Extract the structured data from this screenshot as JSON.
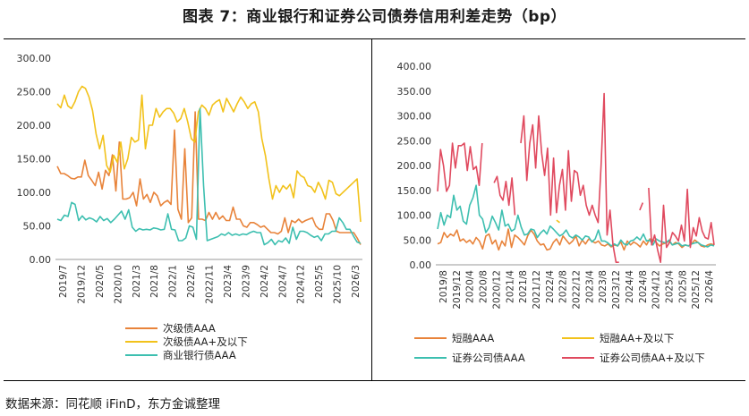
{
  "title": "图表 7：商业银行和证券公司债券信用利差走势（bp）",
  "source": "数据来源：同花顺 iFinD，东方金诚整理",
  "colors": {
    "orange": "#E8833A",
    "yellow": "#F2C21B",
    "teal": "#3DBFB0",
    "red": "#E04A5F"
  },
  "chart_data": [
    {
      "type": "line",
      "ylim": [
        0,
        300
      ],
      "yticks": [
        "300.00",
        "250.00",
        "200.00",
        "150.00",
        "100.00",
        "50.00",
        "0.00"
      ],
      "xticks": [
        "2019/7",
        "2019/12",
        "2020/5",
        "2020/10",
        "2021/3",
        "2021/8",
        "2022/1",
        "2022/6",
        "2022/11",
        "2023/4",
        "2023/9",
        "2024/2",
        "2024/7",
        "2024/12",
        "2025/5",
        "2025/10",
        "2026/3"
      ],
      "legend": [
        "次级债AAA",
        "次级债AA+及以下",
        "商业银行债AAA"
      ],
      "series": [
        {
          "name": "次级债AAA",
          "color": "orange",
          "values": [
            139,
            128,
            128,
            125,
            121,
            120,
            123,
            123,
            148,
            125,
            118,
            110,
            130,
            105,
            133,
            125,
            156,
            102,
            175,
            90,
            90,
            92,
            100,
            80,
            120,
            90,
            97,
            85,
            100,
            95,
            80,
            85,
            88,
            82,
            193,
            75,
            60,
            165,
            55,
            62,
            220,
            60,
            60,
            58,
            70,
            60,
            70,
            60,
            65,
            58,
            58,
            78,
            60,
            60,
            50,
            48,
            55,
            55,
            52,
            48,
            50,
            45,
            40,
            40,
            38,
            42,
            62,
            40,
            58,
            55,
            60,
            55,
            58,
            60,
            62,
            50,
            45,
            45,
            68,
            68,
            58,
            42,
            40,
            40,
            40,
            40,
            40,
            32,
            22
          ]
        },
        {
          "name": "次级债AA+及以下",
          "color": "yellow",
          "values": [
            232,
            226,
            245,
            229,
            225,
            235,
            250,
            258,
            255,
            242,
            222,
            187,
            165,
            185,
            140,
            130,
            155,
            145,
            175,
            135,
            150,
            182,
            175,
            178,
            245,
            165,
            200,
            200,
            225,
            212,
            220,
            225,
            225,
            218,
            205,
            210,
            225,
            205,
            180,
            175,
            220,
            230,
            225,
            215,
            230,
            235,
            238,
            220,
            240,
            230,
            220,
            232,
            242,
            235,
            225,
            232,
            235,
            220,
            180,
            155,
            120,
            90,
            110,
            100,
            110,
            105,
            112,
            92,
            132,
            125,
            122,
            110,
            108,
            100,
            115,
            105,
            90,
            118,
            115,
            98,
            95,
            100,
            105,
            110,
            115,
            120,
            56
          ]
        },
        {
          "name": "商业银行债AAA",
          "color": "teal",
          "values": [
            60,
            58,
            66,
            64,
            85,
            82,
            58,
            65,
            59,
            62,
            60,
            56,
            64,
            58,
            61,
            55,
            60,
            66,
            72,
            60,
            74,
            48,
            42,
            46,
            44,
            45,
            44,
            47,
            46,
            44,
            45,
            68,
            45,
            44,
            28,
            28,
            32,
            50,
            48,
            30,
            225,
            110,
            28,
            30,
            32,
            34,
            38,
            36,
            40,
            36,
            38,
            36,
            38,
            37,
            40,
            42,
            40,
            40,
            22,
            25,
            30,
            22,
            28,
            26,
            32,
            24,
            48,
            30,
            42,
            42,
            40,
            36,
            33,
            35,
            28,
            38,
            38,
            42,
            42,
            62,
            55,
            45,
            45,
            35,
            26,
            24
          ]
        }
      ]
    },
    {
      "type": "line",
      "ylim": [
        0,
        400
      ],
      "yticks": [
        "400.00",
        "350.00",
        "300.00",
        "250.00",
        "200.00",
        "150.00",
        "100.00",
        "50.00",
        "0.00"
      ],
      "xticks": [
        "2019/8",
        "2019/12",
        "2020/4",
        "2020/8",
        "2020/12",
        "2021/4",
        "2021/8",
        "2021/12",
        "2022/4",
        "2022/8",
        "2022/12",
        "2023/4",
        "2023/8",
        "2023/12",
        "2024/4",
        "2024/8",
        "2024/12",
        "2025/4",
        "2025/8",
        "2025/12",
        "2026/4"
      ],
      "legend": [
        "短融AAA",
        "短融AA+及以下",
        "证券公司债AAA",
        "证券公司债AA+及以下"
      ],
      "series": [
        {
          "name": "短融AAA",
          "color": "orange",
          "values": [
            42,
            45,
            65,
            55,
            62,
            58,
            70,
            48,
            52,
            45,
            50,
            42,
            55,
            48,
            32,
            58,
            62,
            42,
            50,
            30,
            48,
            38,
            72,
            35,
            60,
            55,
            48,
            40,
            58,
            70,
            62,
            48,
            40,
            42,
            30,
            32,
            45,
            52,
            40,
            58,
            50,
            42,
            48,
            58,
            38,
            50,
            42,
            52,
            48,
            44,
            48,
            40,
            38,
            42,
            36,
            40,
            38,
            46,
            30,
            48,
            40,
            46,
            42,
            36,
            48,
            40,
            52,
            50,
            45,
            38,
            42,
            44,
            48,
            40,
            45,
            42,
            35,
            40,
            38,
            42,
            50,
            45,
            38,
            36,
            40,
            42,
            40
          ]
        },
        {
          "name": "短融AA+及以下",
          "color": "yellow",
          "values": [
            null,
            null,
            null,
            null,
            null,
            null,
            null,
            null,
            null,
            null,
            null,
            150,
            null,
            null,
            null,
            null,
            null,
            null,
            null,
            null,
            null,
            null,
            null,
            112,
            null,
            null,
            null,
            null,
            null,
            null,
            null,
            null,
            null,
            null,
            null,
            null,
            null,
            90,
            85,
            null,
            null,
            null,
            null,
            null,
            null,
            null,
            null,
            null,
            null,
            null,
            null,
            null,
            null,
            null,
            120,
            null,
            null,
            null,
            null,
            null,
            95,
            null,
            null,
            null,
            null,
            null,
            null,
            72,
            null,
            null,
            null,
            null,
            null,
            null,
            null,
            null,
            null,
            null,
            null,
            null,
            null,
            null,
            null,
            null,
            null,
            null,
            null
          ]
        },
        {
          "name": "证券公司债AAA",
          "color": "teal",
          "values": [
            72,
            105,
            80,
            100,
            95,
            140,
            110,
            118,
            88,
            82,
            120,
            135,
            160,
            100,
            92,
            65,
            75,
            98,
            85,
            70,
            110,
            78,
            82,
            68,
            72,
            100,
            76,
            60,
            62,
            72,
            70,
            55,
            64,
            70,
            62,
            78,
            72,
            65,
            58,
            62,
            70,
            58,
            54,
            60,
            56,
            50,
            58,
            56,
            46,
            52,
            70,
            48,
            48,
            44,
            38,
            42,
            38,
            50,
            42,
            40,
            48,
            50,
            56,
            50,
            62,
            48,
            50,
            40,
            52,
            48,
            46,
            44,
            50,
            40,
            42,
            44,
            38,
            40,
            38,
            42,
            44,
            45,
            40,
            38,
            36,
            40,
            38
          ]
        },
        {
          "name": "证券公司债AA+及以下",
          "color": "red",
          "values": [
            148,
            232,
            200,
            148,
            160,
            245,
            195,
            240,
            240,
            245,
            190,
            238,
            192,
            198,
            160,
            245,
            null,
            180,
            null,
            165,
            178,
            140,
            130,
            168,
            120,
            175,
            100,
            null,
            245,
            300,
            170,
            245,
            282,
            195,
            300,
            225,
            180,
            235,
            100,
            215,
            105,
            160,
            192,
            110,
            230,
            128,
            190,
            185,
            140,
            160,
            120,
            100,
            120,
            100,
            85,
            200,
            345,
            60,
            110,
            40,
            5,
            5,
            null,
            null,
            90,
            null,
            null,
            null,
            110,
            125,
            null,
            155,
            40,
            60,
            30,
            5,
            120,
            35,
            45,
            65,
            58,
            48,
            80,
            48,
            152,
            35,
            75,
            58,
            95,
            68,
            55,
            52,
            85,
            40
          ]
        }
      ]
    }
  ]
}
